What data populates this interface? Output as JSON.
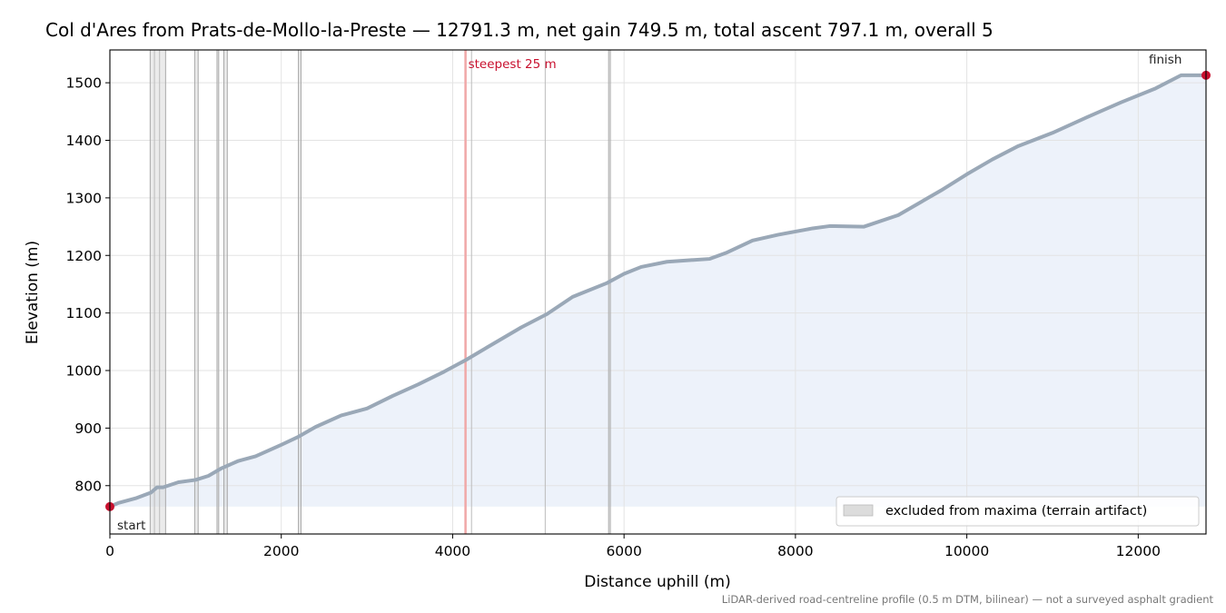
{
  "chart_data": {
    "type": "area",
    "title": "Col d'Ares from Prats-de-Mollo-la-Preste — 12791.3 m, net gain 749.5 m, total ascent 797.1 m, overall 5",
    "xlabel": "Distance uphill (m)",
    "ylabel": "Elevation (m)",
    "xlim": [
      0,
      12791.3
    ],
    "ylim": [
      716,
      1557
    ],
    "x_ticks": [
      0,
      2000,
      4000,
      6000,
      8000,
      10000,
      12000
    ],
    "y_ticks": [
      800,
      900,
      1000,
      1100,
      1200,
      1300,
      1400,
      1500
    ],
    "grid": true,
    "fill_baseline": 763.5,
    "series": [
      {
        "x": [
          0,
          100,
          300,
          480,
          550,
          620,
          700,
          800,
          1000,
          1150,
          1300,
          1500,
          1700,
          2000,
          2200,
          2400,
          2700,
          3000,
          3300,
          3600,
          3900,
          4150,
          4400,
          4800,
          5100,
          5400,
          5800,
          6000,
          6200,
          6500,
          7000,
          7200,
          7500,
          7800,
          8200,
          8400,
          8800,
          9200,
          9700,
          10000,
          10300,
          10600,
          11000,
          11400,
          11800,
          12200,
          12500,
          12791.3
        ],
        "y": [
          763.5,
          770,
          778,
          788,
          797,
          797,
          801,
          806,
          810,
          817,
          830,
          843,
          851,
          871,
          885,
          902,
          922,
          934,
          956,
          976,
          998,
          1018,
          1040,
          1075,
          1098,
          1128,
          1152,
          1168,
          1180,
          1189,
          1194,
          1205,
          1226,
          1236,
          1247,
          1251,
          1250,
          1270,
          1313,
          1341,
          1367,
          1390,
          1413,
          1440,
          1466,
          1490,
          1513,
          1513
        ]
      }
    ],
    "excluded_bands": [
      {
        "x0": 470,
        "x1": 650
      },
      {
        "x0": 990,
        "x1": 1030
      },
      {
        "x0": 1250,
        "x1": 1270
      },
      {
        "x0": 1330,
        "x1": 1370
      },
      {
        "x0": 2200,
        "x1": 2230
      },
      {
        "x0": 5820,
        "x1": 5840
      }
    ],
    "thin_lines_x": [
      520,
      580,
      5080,
      4220
    ],
    "steepest": {
      "x": 4150,
      "label": "steepest 25 m"
    },
    "markers": [
      {
        "x": 0,
        "y": 763.5,
        "label": "start"
      },
      {
        "x": 12791.3,
        "y": 1513,
        "label": "finish"
      }
    ],
    "legend": {
      "position": "lower-right",
      "label": "excluded from maxima (terrain artifact)"
    },
    "footnote": "LiDAR-derived road-centreline profile (0.5 m DTM, bilinear) — not a surveyed asphalt gradient",
    "colors": {
      "line": "#9aa8b7",
      "fill": "#edf2fa",
      "grid": "#e3e3e3",
      "band": "#d2d2d2",
      "steepest": "#f0a8a8",
      "accent": "#c8102e",
      "marker": "#c8102e"
    }
  }
}
